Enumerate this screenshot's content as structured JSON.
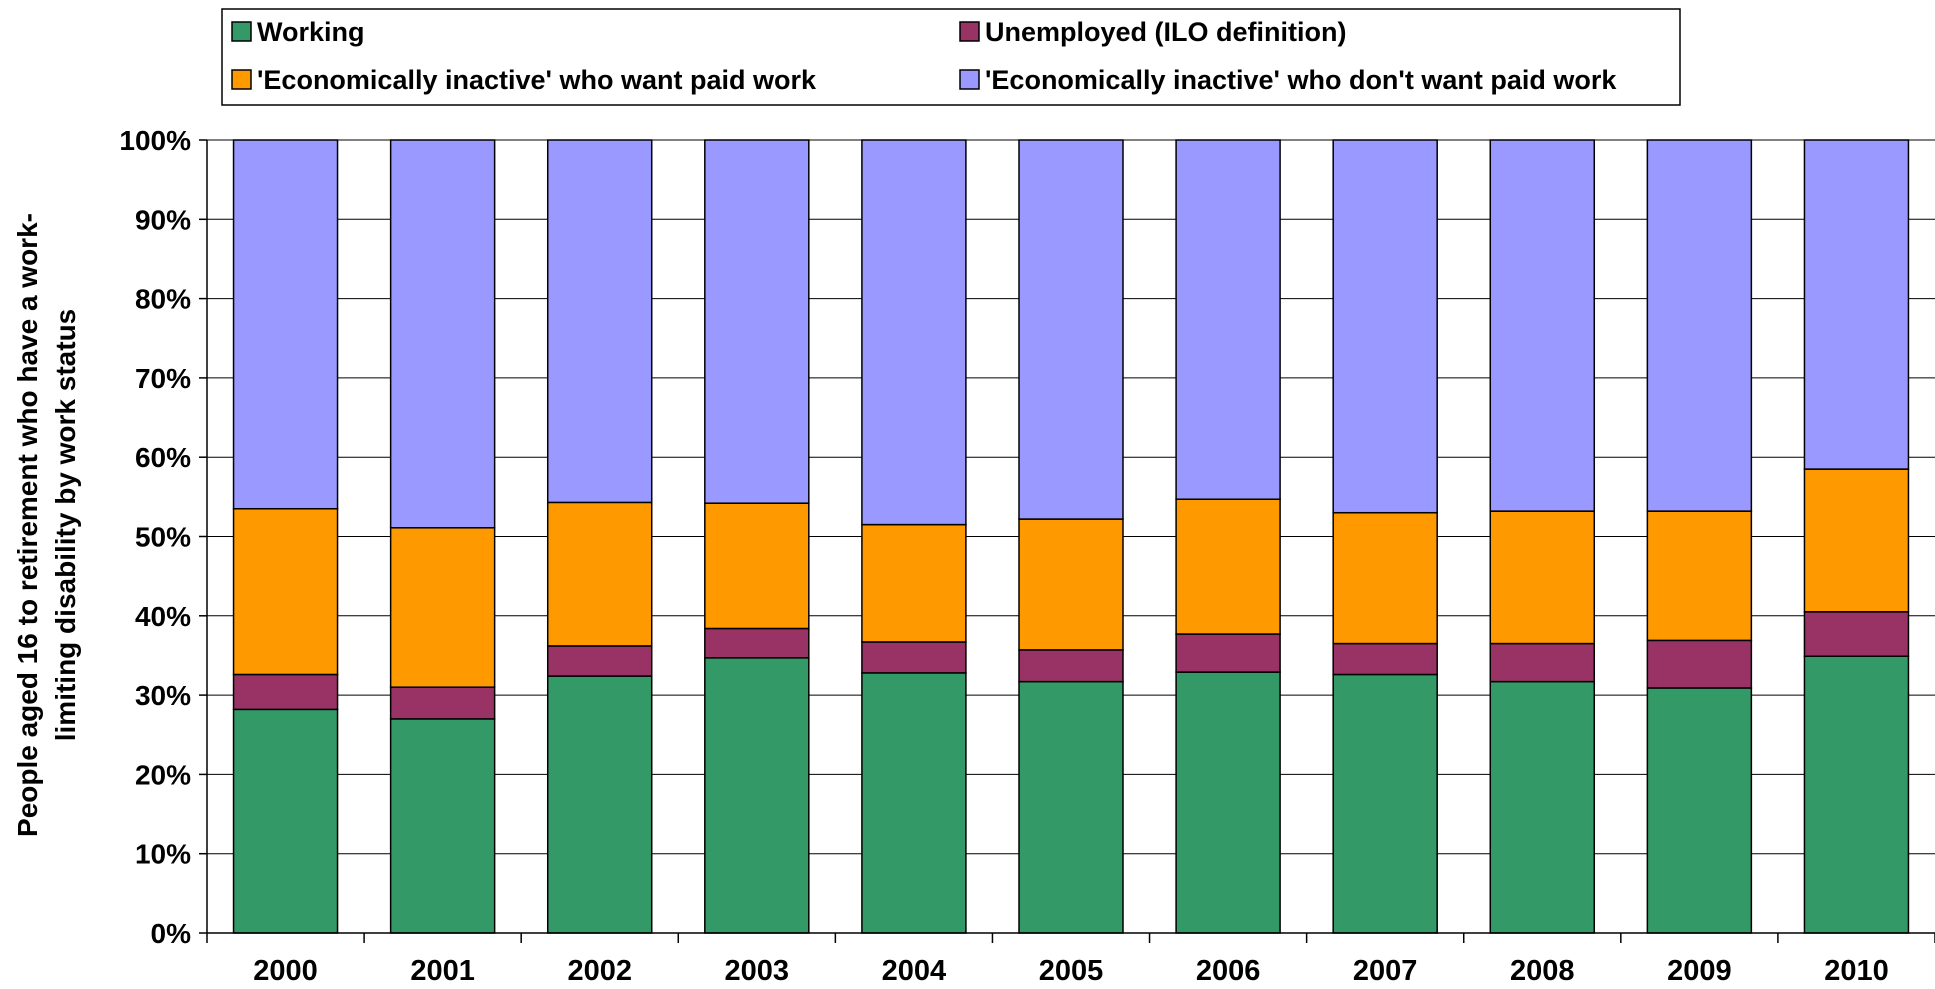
{
  "chart_data": {
    "type": "bar",
    "stacked": true,
    "title": "",
    "xlabel": "",
    "ylabel": "People aged 16 to retirement who have a work-limiting disability by work status",
    "ylabel_lines": [
      "People aged 16 to retirement who have a work-",
      "limiting disability by work status"
    ],
    "categories": [
      "2000",
      "2001",
      "2002",
      "2003",
      "2004",
      "2005",
      "2006",
      "2007",
      "2008",
      "2009",
      "2010"
    ],
    "ylim": [
      0,
      100
    ],
    "yticks": [
      "0%",
      "10%",
      "20%",
      "30%",
      "40%",
      "50%",
      "60%",
      "70%",
      "80%",
      "90%",
      "100%"
    ],
    "grid": true,
    "legend_position": "top",
    "series": [
      {
        "name": "Working",
        "color": "#339966",
        "values": [
          28.2,
          27.0,
          32.4,
          34.7,
          32.8,
          31.7,
          32.9,
          32.6,
          31.7,
          30.9,
          34.9
        ]
      },
      {
        "name": "Unemployed (ILO definition)",
        "color": "#993366",
        "values": [
          4.4,
          4.0,
          3.8,
          3.7,
          3.9,
          4.0,
          4.8,
          3.9,
          4.8,
          6.0,
          5.6
        ]
      },
      {
        "name": "'Economically inactive' who want paid work",
        "color": "#FF9900",
        "values": [
          20.9,
          20.1,
          18.1,
          15.8,
          14.8,
          16.5,
          17.0,
          16.5,
          16.7,
          16.3,
          18.0
        ]
      },
      {
        "name": "'Economically inactive' who don't want paid work",
        "color": "#9999FF",
        "values": [
          46.5,
          48.9,
          45.7,
          45.8,
          48.5,
          47.8,
          45.3,
          47.0,
          46.8,
          46.8,
          41.5
        ]
      }
    ]
  }
}
